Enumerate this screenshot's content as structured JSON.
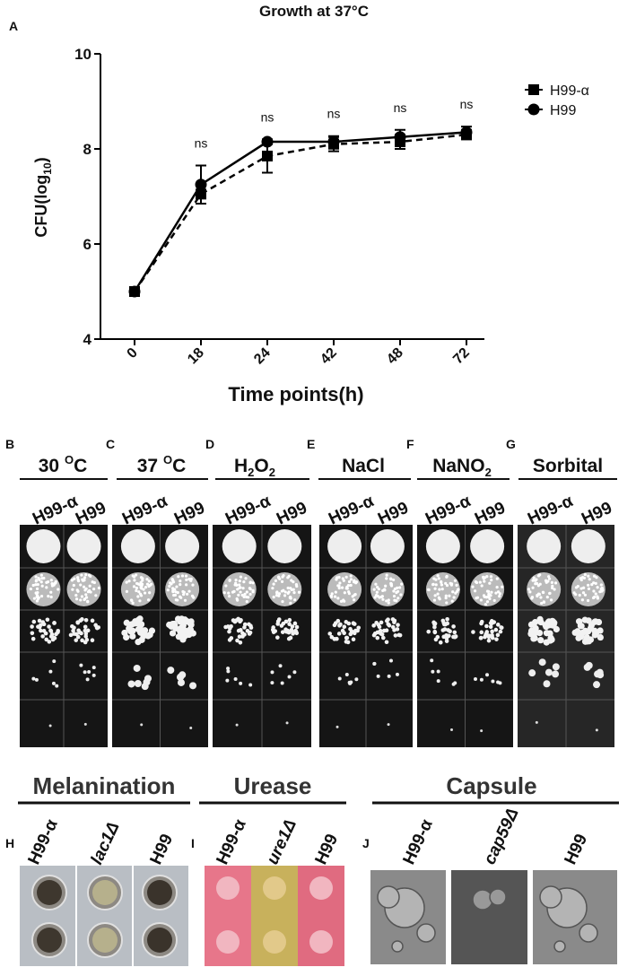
{
  "chart_data": {
    "type": "line",
    "panel_letter": "A",
    "title": "Growth at 37°C",
    "x_label": "Time points(h)",
    "y_label_parts": [
      "CFU(log",
      "10",
      ")"
    ],
    "categories": [
      "0",
      "18",
      "24",
      "42",
      "48",
      "72"
    ],
    "series": [
      {
        "name": "H99-α",
        "color": "#000000",
        "dashed": true,
        "marker": "square",
        "values": [
          5,
          7.05,
          7.85,
          8.1,
          8.15,
          8.3
        ],
        "errors": [
          0,
          0.2,
          0.35,
          0.15,
          0.15,
          0.1
        ]
      },
      {
        "name": "H99",
        "color": "#000000",
        "dashed": false,
        "marker": "circle",
        "values": [
          5,
          7.25,
          8.15,
          8.15,
          8.25,
          8.35
        ],
        "errors": [
          0,
          0.4,
          0.05,
          0.12,
          0.15,
          0.12
        ]
      }
    ],
    "annotations": [
      null,
      "ns",
      "ns",
      "ns",
      "ns",
      "ns"
    ],
    "ylim": [
      4,
      10
    ],
    "yticks": [
      4,
      6,
      8,
      10
    ],
    "grid": false,
    "legend": "upper right"
  },
  "spot_panels": [
    {
      "letter": "B",
      "title": [
        "30 ",
        "O",
        "C"
      ],
      "strains": [
        "H99-α",
        "H99"
      ]
    },
    {
      "letter": "C",
      "title": [
        "37 ",
        "O",
        "C"
      ],
      "strains": [
        "H99-α",
        "H99"
      ]
    },
    {
      "letter": "D",
      "title": [
        "H",
        "2",
        "O",
        "2"
      ],
      "strains": [
        "H99-α",
        "H99"
      ]
    },
    {
      "letter": "E",
      "title": [
        "NaCl"
      ],
      "strains": [
        "H99-α",
        "H99"
      ]
    },
    {
      "letter": "F",
      "title": [
        "NaNO",
        "2"
      ],
      "strains": [
        "H99-α",
        "H99"
      ]
    },
    {
      "letter": "G",
      "title": [
        "Sorbital"
      ],
      "strains": [
        "H99-α",
        "H99"
      ]
    }
  ],
  "assay_panels": [
    {
      "letter": "H",
      "title": "Melanination",
      "strains": [
        "H99-α",
        "lac1Δ",
        "H99"
      ]
    },
    {
      "letter": "I",
      "title": "Urease",
      "strains": [
        "H99-α",
        "ure1Δ",
        "H99"
      ]
    },
    {
      "letter": "J",
      "title": "Capsule",
      "strains": [
        "H99-α",
        "cap59Δ",
        "H99"
      ]
    }
  ]
}
